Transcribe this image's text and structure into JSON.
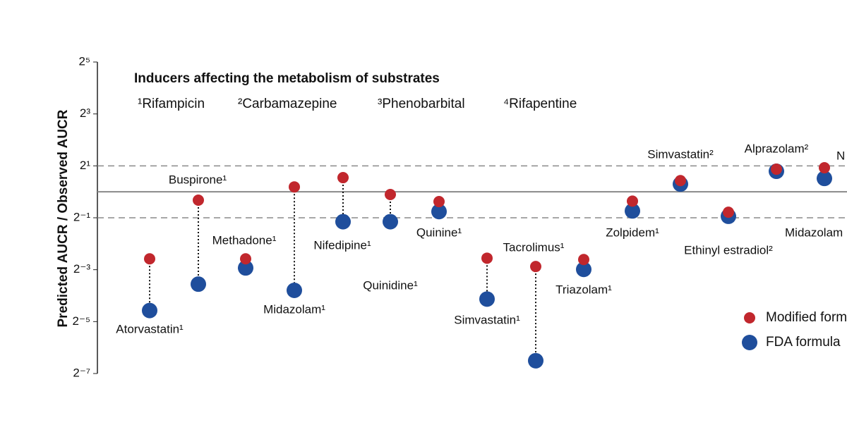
{
  "chart_data": {
    "type": "dotplot",
    "title": "Inducers affecting the metabolism of substrates",
    "subtitle": [
      "¹Rifampicin",
      "²Carbamazepine",
      "³Phenobarbital",
      "⁴Rifapentine"
    ],
    "y_label": "Predicted AUCR / Observed AUCR",
    "log_scale": 2,
    "ylim": [
      0.0078125,
      32
    ],
    "yticks": [
      {
        "value": 32,
        "label": "2⁵"
      },
      {
        "value": 8,
        "label": "2³"
      },
      {
        "value": 2,
        "label": "2¹"
      },
      {
        "value": 0.5,
        "label": "2⁻¹"
      },
      {
        "value": 0.125,
        "label": "2⁻³"
      },
      {
        "value": 0.03125,
        "label": "2⁻⁵"
      },
      {
        "value": 0.0078125,
        "label": "2⁻⁷"
      }
    ],
    "hlines": [
      {
        "value": 2,
        "dashed": true
      },
      {
        "value": 1,
        "dashed": false
      },
      {
        "value": 0.5,
        "dashed": true
      }
    ],
    "categories": [
      "Atorvastatin¹",
      "Buspirone¹",
      "Methadone¹",
      "Midazolam¹",
      "Nifedipine¹",
      "Quinidine¹",
      "Quinine¹",
      "Simvastatin¹",
      "Tacrolimus¹",
      "Triazolam¹",
      "Zolpidem¹",
      "Simvastatin²",
      "Ethinyl estradiol²",
      "Alprazolam²",
      "Midazolam",
      "N"
    ],
    "series": [
      {
        "name": "Modified formula",
        "color": "#c1272d",
        "values": [
          0.167,
          0.8,
          0.167,
          1.14,
          1.46,
          0.93,
          0.77,
          0.17,
          0.136,
          0.164,
          0.78,
          1.35,
          0.58,
          1.83,
          1.9,
          null
        ]
      },
      {
        "name": "FDA formula",
        "color": "#1f4e9c",
        "values": [
          0.042,
          0.085,
          0.131,
          0.072,
          0.45,
          0.45,
          0.59,
          0.057,
          0.011,
          0.126,
          0.6,
          1.23,
          0.52,
          1.73,
          1.43,
          null
        ]
      }
    ]
  }
}
